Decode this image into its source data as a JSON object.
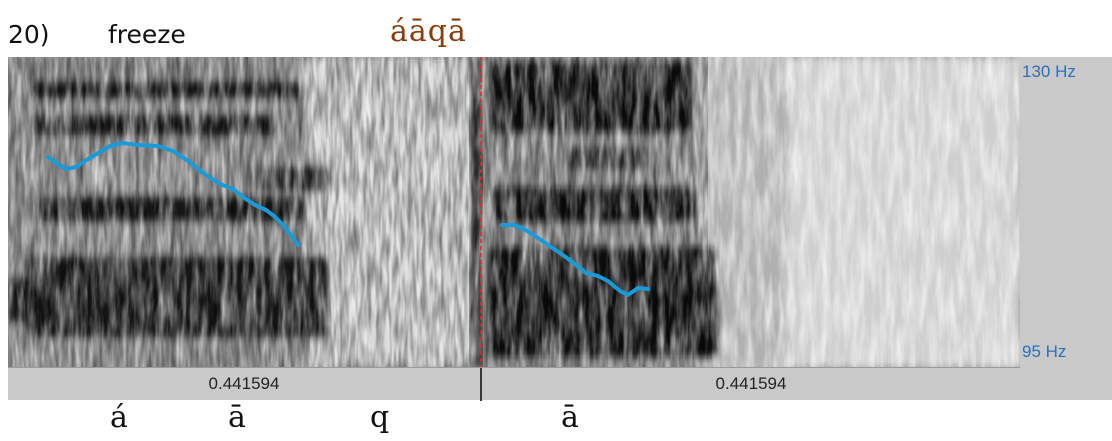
{
  "header": {
    "example_number": "20)",
    "gloss": "freeze",
    "transcription": "áāqā"
  },
  "spectrogram": {
    "freq_top": "130 Hz",
    "freq_bottom": "95 Hz",
    "pitch_color": "#1a9ad6",
    "cursor_color": "#d9301f"
  },
  "duration_bar": {
    "left_value": "0.441594",
    "right_value": "0.441594"
  },
  "segments": {
    "s1": "á",
    "s2": "ā",
    "s3": "q",
    "s4": "ā"
  }
}
